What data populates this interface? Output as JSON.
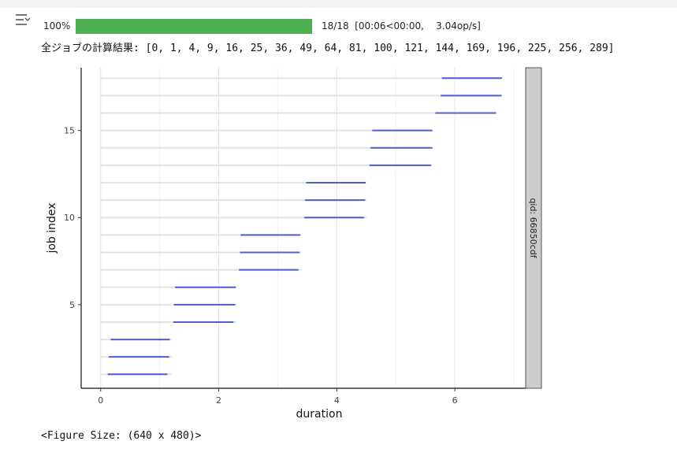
{
  "progress": {
    "percent_label": "100%",
    "fraction": 1.0,
    "status": "18/18  [00:06<00:00,    3.04op/s]"
  },
  "result_line": "全ジョブの計算結果: [0, 1, 4, 9, 16, 25, 36, 49, 64, 81, 100, 121, 144, 169, 196, 225, 256, 289]",
  "figure_size": "<Figure Size: (640 x 480)>",
  "colors": {
    "progress": "#4caf50",
    "segment": "#4d5fd1",
    "background_line": "#e2e2e2",
    "facet_strip": "#cccccc"
  },
  "chart_data": {
    "type": "line",
    "xlabel": "duration",
    "ylabel": "job index",
    "xlim": [
      -0.33,
      7.2
    ],
    "ylim": [
      0.2,
      18.6
    ],
    "xticks": [
      0,
      2,
      4,
      6
    ],
    "yticks": [
      5,
      10,
      15
    ],
    "grid": true,
    "facet_label": "qid: 66850cdf",
    "background_end": [
      1.2,
      1.2,
      1.2,
      2.3,
      2.3,
      2.3,
      3.4,
      3.4,
      3.4,
      4.5,
      4.5,
      4.5,
      5.6,
      5.6,
      5.6,
      6.7,
      6.8,
      6.8
    ],
    "segments": [
      {
        "job": 1,
        "start": 0.12,
        "end": 1.13
      },
      {
        "job": 2,
        "start": 0.14,
        "end": 1.16
      },
      {
        "job": 3,
        "start": 0.17,
        "end": 1.17
      },
      {
        "job": 4,
        "start": 1.23,
        "end": 2.25
      },
      {
        "job": 5,
        "start": 1.24,
        "end": 2.28
      },
      {
        "job": 6,
        "start": 1.26,
        "end": 2.29
      },
      {
        "job": 7,
        "start": 2.34,
        "end": 3.35
      },
      {
        "job": 8,
        "start": 2.36,
        "end": 3.37
      },
      {
        "job": 9,
        "start": 2.37,
        "end": 3.38
      },
      {
        "job": 10,
        "start": 3.45,
        "end": 4.46
      },
      {
        "job": 11,
        "start": 3.46,
        "end": 4.48
      },
      {
        "job": 12,
        "start": 3.48,
        "end": 4.49
      },
      {
        "job": 13,
        "start": 4.55,
        "end": 5.6
      },
      {
        "job": 14,
        "start": 4.57,
        "end": 5.62
      },
      {
        "job": 15,
        "start": 4.6,
        "end": 5.62
      },
      {
        "job": 16,
        "start": 5.67,
        "end": 6.7
      },
      {
        "job": 17,
        "start": 5.76,
        "end": 6.79
      },
      {
        "job": 18,
        "start": 5.78,
        "end": 6.8
      }
    ]
  }
}
